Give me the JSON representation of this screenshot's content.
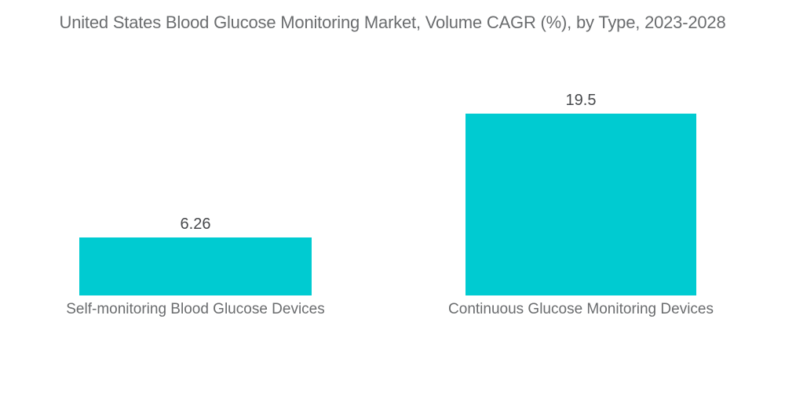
{
  "chart_data": {
    "type": "bar",
    "title": "United States Blood Glucose Monitoring Market, Volume CAGR (%), by Type, 2023-2028",
    "categories": [
      "Self-monitoring Blood Glucose Devices",
      "Continuous Glucose Monitoring Devices"
    ],
    "values": [
      6.26,
      19.5
    ],
    "value_labels": [
      "6.26",
      "19.5"
    ],
    "series": [
      {
        "name": "Volume CAGR (%)",
        "values": [
          6.26,
          19.5
        ]
      }
    ],
    "xlabel": "",
    "ylabel": "",
    "ylim": [
      0,
      25
    ],
    "grid": false,
    "legend": "none",
    "orientation": "vertical"
  },
  "colors": {
    "background": "#ffffff",
    "bar": "#00cbd1",
    "title_text": "#6b6d6f",
    "value_text": "#47494c",
    "category_text": "#6a6c6e"
  }
}
